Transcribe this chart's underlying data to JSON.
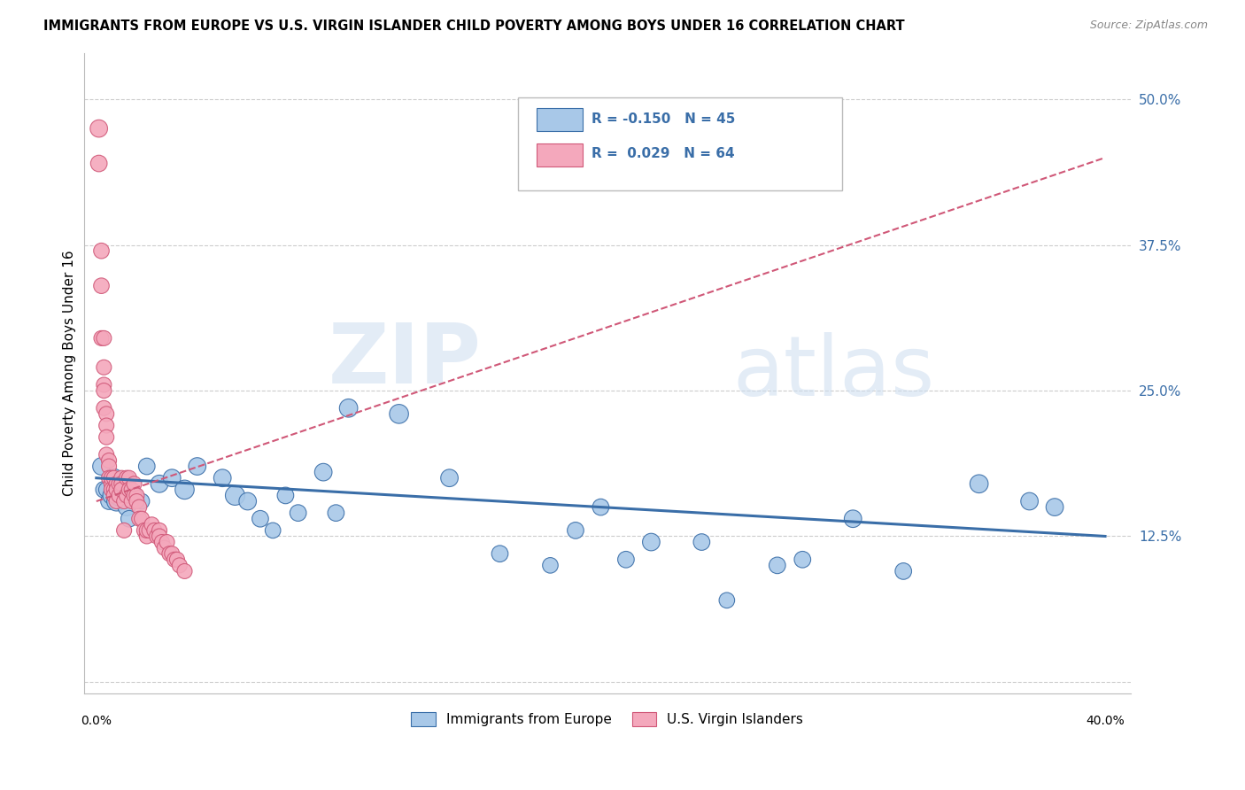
{
  "title": "IMMIGRANTS FROM EUROPE VS U.S. VIRGIN ISLANDER CHILD POVERTY AMONG BOYS UNDER 16 CORRELATION CHART",
  "source": "Source: ZipAtlas.com",
  "ylabel": "Child Poverty Among Boys Under 16",
  "ytick_vals": [
    0.0,
    0.125,
    0.25,
    0.375,
    0.5
  ],
  "ytick_labels": [
    "",
    "12.5%",
    "25.0%",
    "37.5%",
    "50.0%"
  ],
  "legend1_label": "Immigrants from Europe",
  "legend2_label": "U.S. Virgin Islanders",
  "r1": "-0.150",
  "n1": "45",
  "r2": "0.029",
  "n2": "64",
  "color_blue": "#a8c8e8",
  "color_pink": "#f4a8bc",
  "line_color_blue": "#3a6ea8",
  "line_color_pink": "#d05878",
  "xmin": 0.0,
  "xmax": 0.4,
  "ymin": 0.0,
  "ymax": 0.54,
  "blue_x": [
    0.002,
    0.003,
    0.004,
    0.005,
    0.006,
    0.007,
    0.008,
    0.009,
    0.01,
    0.012,
    0.013,
    0.015,
    0.018,
    0.02,
    0.025,
    0.03,
    0.035,
    0.04,
    0.05,
    0.055,
    0.06,
    0.065,
    0.07,
    0.075,
    0.08,
    0.09,
    0.095,
    0.1,
    0.12,
    0.14,
    0.16,
    0.18,
    0.2,
    0.22,
    0.25,
    0.28,
    0.3,
    0.32,
    0.35,
    0.37,
    0.38,
    0.27,
    0.24,
    0.21,
    0.19
  ],
  "blue_y": [
    0.185,
    0.165,
    0.165,
    0.155,
    0.16,
    0.175,
    0.155,
    0.16,
    0.165,
    0.15,
    0.14,
    0.16,
    0.155,
    0.185,
    0.17,
    0.175,
    0.165,
    0.185,
    0.175,
    0.16,
    0.155,
    0.14,
    0.13,
    0.16,
    0.145,
    0.18,
    0.145,
    0.235,
    0.23,
    0.175,
    0.11,
    0.1,
    0.15,
    0.12,
    0.07,
    0.105,
    0.14,
    0.095,
    0.17,
    0.155,
    0.15,
    0.1,
    0.12,
    0.105,
    0.13
  ],
  "blue_size": [
    200,
    180,
    160,
    180,
    200,
    220,
    250,
    280,
    320,
    200,
    180,
    180,
    160,
    180,
    200,
    200,
    240,
    200,
    200,
    250,
    200,
    180,
    160,
    180,
    180,
    200,
    180,
    220,
    240,
    200,
    180,
    160,
    180,
    200,
    160,
    180,
    200,
    180,
    220,
    200,
    200,
    180,
    180,
    180,
    180
  ],
  "pink_x": [
    0.001,
    0.001,
    0.002,
    0.002,
    0.002,
    0.003,
    0.003,
    0.003,
    0.003,
    0.003,
    0.004,
    0.004,
    0.004,
    0.004,
    0.005,
    0.005,
    0.005,
    0.006,
    0.006,
    0.006,
    0.007,
    0.007,
    0.007,
    0.008,
    0.008,
    0.008,
    0.009,
    0.009,
    0.01,
    0.01,
    0.01,
    0.011,
    0.011,
    0.012,
    0.012,
    0.013,
    0.013,
    0.014,
    0.014,
    0.015,
    0.015,
    0.016,
    0.016,
    0.017,
    0.017,
    0.018,
    0.019,
    0.02,
    0.02,
    0.021,
    0.022,
    0.023,
    0.024,
    0.025,
    0.025,
    0.026,
    0.027,
    0.028,
    0.029,
    0.03,
    0.031,
    0.032,
    0.033,
    0.035
  ],
  "pink_y": [
    0.475,
    0.445,
    0.37,
    0.34,
    0.295,
    0.295,
    0.27,
    0.255,
    0.25,
    0.235,
    0.23,
    0.22,
    0.21,
    0.195,
    0.19,
    0.185,
    0.175,
    0.17,
    0.175,
    0.165,
    0.165,
    0.175,
    0.16,
    0.17,
    0.165,
    0.155,
    0.16,
    0.17,
    0.175,
    0.17,
    0.165,
    0.155,
    0.13,
    0.16,
    0.175,
    0.175,
    0.165,
    0.165,
    0.155,
    0.16,
    0.17,
    0.16,
    0.155,
    0.15,
    0.14,
    0.14,
    0.13,
    0.125,
    0.13,
    0.13,
    0.135,
    0.13,
    0.125,
    0.13,
    0.125,
    0.12,
    0.115,
    0.12,
    0.11,
    0.11,
    0.105,
    0.105,
    0.1,
    0.095
  ],
  "pink_size": [
    200,
    180,
    160,
    160,
    150,
    150,
    150,
    150,
    150,
    150,
    150,
    150,
    150,
    150,
    150,
    150,
    150,
    150,
    150,
    150,
    150,
    150,
    150,
    150,
    150,
    150,
    150,
    150,
    150,
    150,
    150,
    150,
    150,
    150,
    150,
    150,
    150,
    150,
    150,
    150,
    150,
    150,
    150,
    150,
    150,
    150,
    150,
    150,
    150,
    150,
    150,
    150,
    150,
    150,
    150,
    150,
    150,
    150,
    150,
    150,
    150,
    150,
    150,
    150
  ],
  "blue_trend_x": [
    0.0,
    0.4
  ],
  "blue_trend_y": [
    0.175,
    0.125
  ],
  "pink_trend_x": [
    0.0,
    0.4
  ],
  "pink_trend_y": [
    0.155,
    0.45
  ]
}
